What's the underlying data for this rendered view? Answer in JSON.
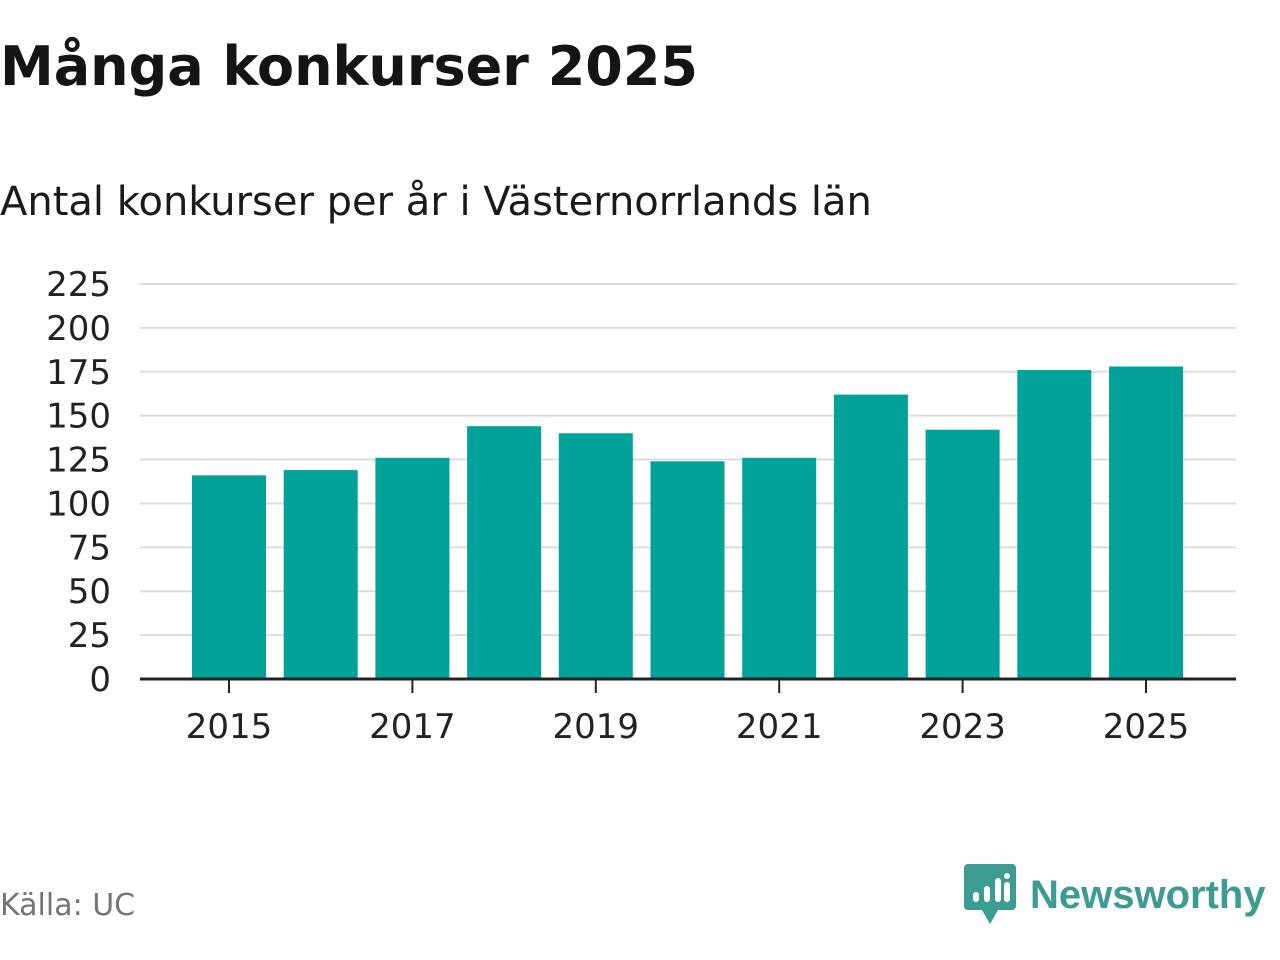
{
  "title": "Många konkurser 2025",
  "subtitle": "Antal konkurser per år i Västernorrlands län",
  "source": "Källa: UC",
  "brand": {
    "name": "Newsworthy",
    "icon": "newsworthy-logo-icon",
    "color": "#3c9b93"
  },
  "colors": {
    "bar": "#00a29a",
    "grid": "#dddddd",
    "axis": "#222222"
  },
  "chart_data": {
    "type": "bar",
    "title": "",
    "xlabel": "",
    "ylabel": "",
    "categories": [
      "2015",
      "2016",
      "2017",
      "2018",
      "2019",
      "2020",
      "2021",
      "2022",
      "2023",
      "2024",
      "2025"
    ],
    "values": [
      116,
      119,
      126,
      144,
      140,
      124,
      126,
      162,
      142,
      176,
      178
    ],
    "x_tick_labels": [
      "2015",
      "2017",
      "2019",
      "2021",
      "2023",
      "2025"
    ],
    "y_ticks": [
      0,
      25,
      50,
      75,
      100,
      125,
      150,
      175,
      200,
      225
    ],
    "ylim": [
      0,
      225
    ],
    "grid": true,
    "legend": "none"
  }
}
